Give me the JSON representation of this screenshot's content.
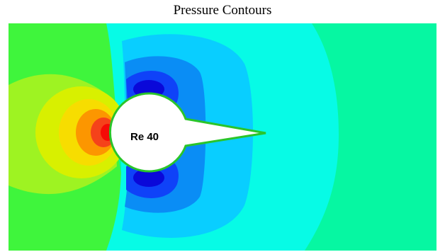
{
  "title": "Pressure Contours",
  "obstacle_label": "Re 40",
  "colors": {
    "background": "#06f7a2",
    "band_1": "#3ff53c",
    "band_2": "#9ef322",
    "band_3": "#d8f000",
    "band_4": "#f7dd00",
    "band_5": "#fc9600",
    "band_6": "#f5421a",
    "band_7": "#f60a06",
    "band_cyan": "#07fbe6",
    "band_lightblue": "#09ceff",
    "band_midblue": "#0a8df5",
    "band_blue": "#0f42f8",
    "band_deepblue": "#0a08d9",
    "obstacle_fill": "#ffffff",
    "obstacle_outline": "#2ac52a"
  }
}
